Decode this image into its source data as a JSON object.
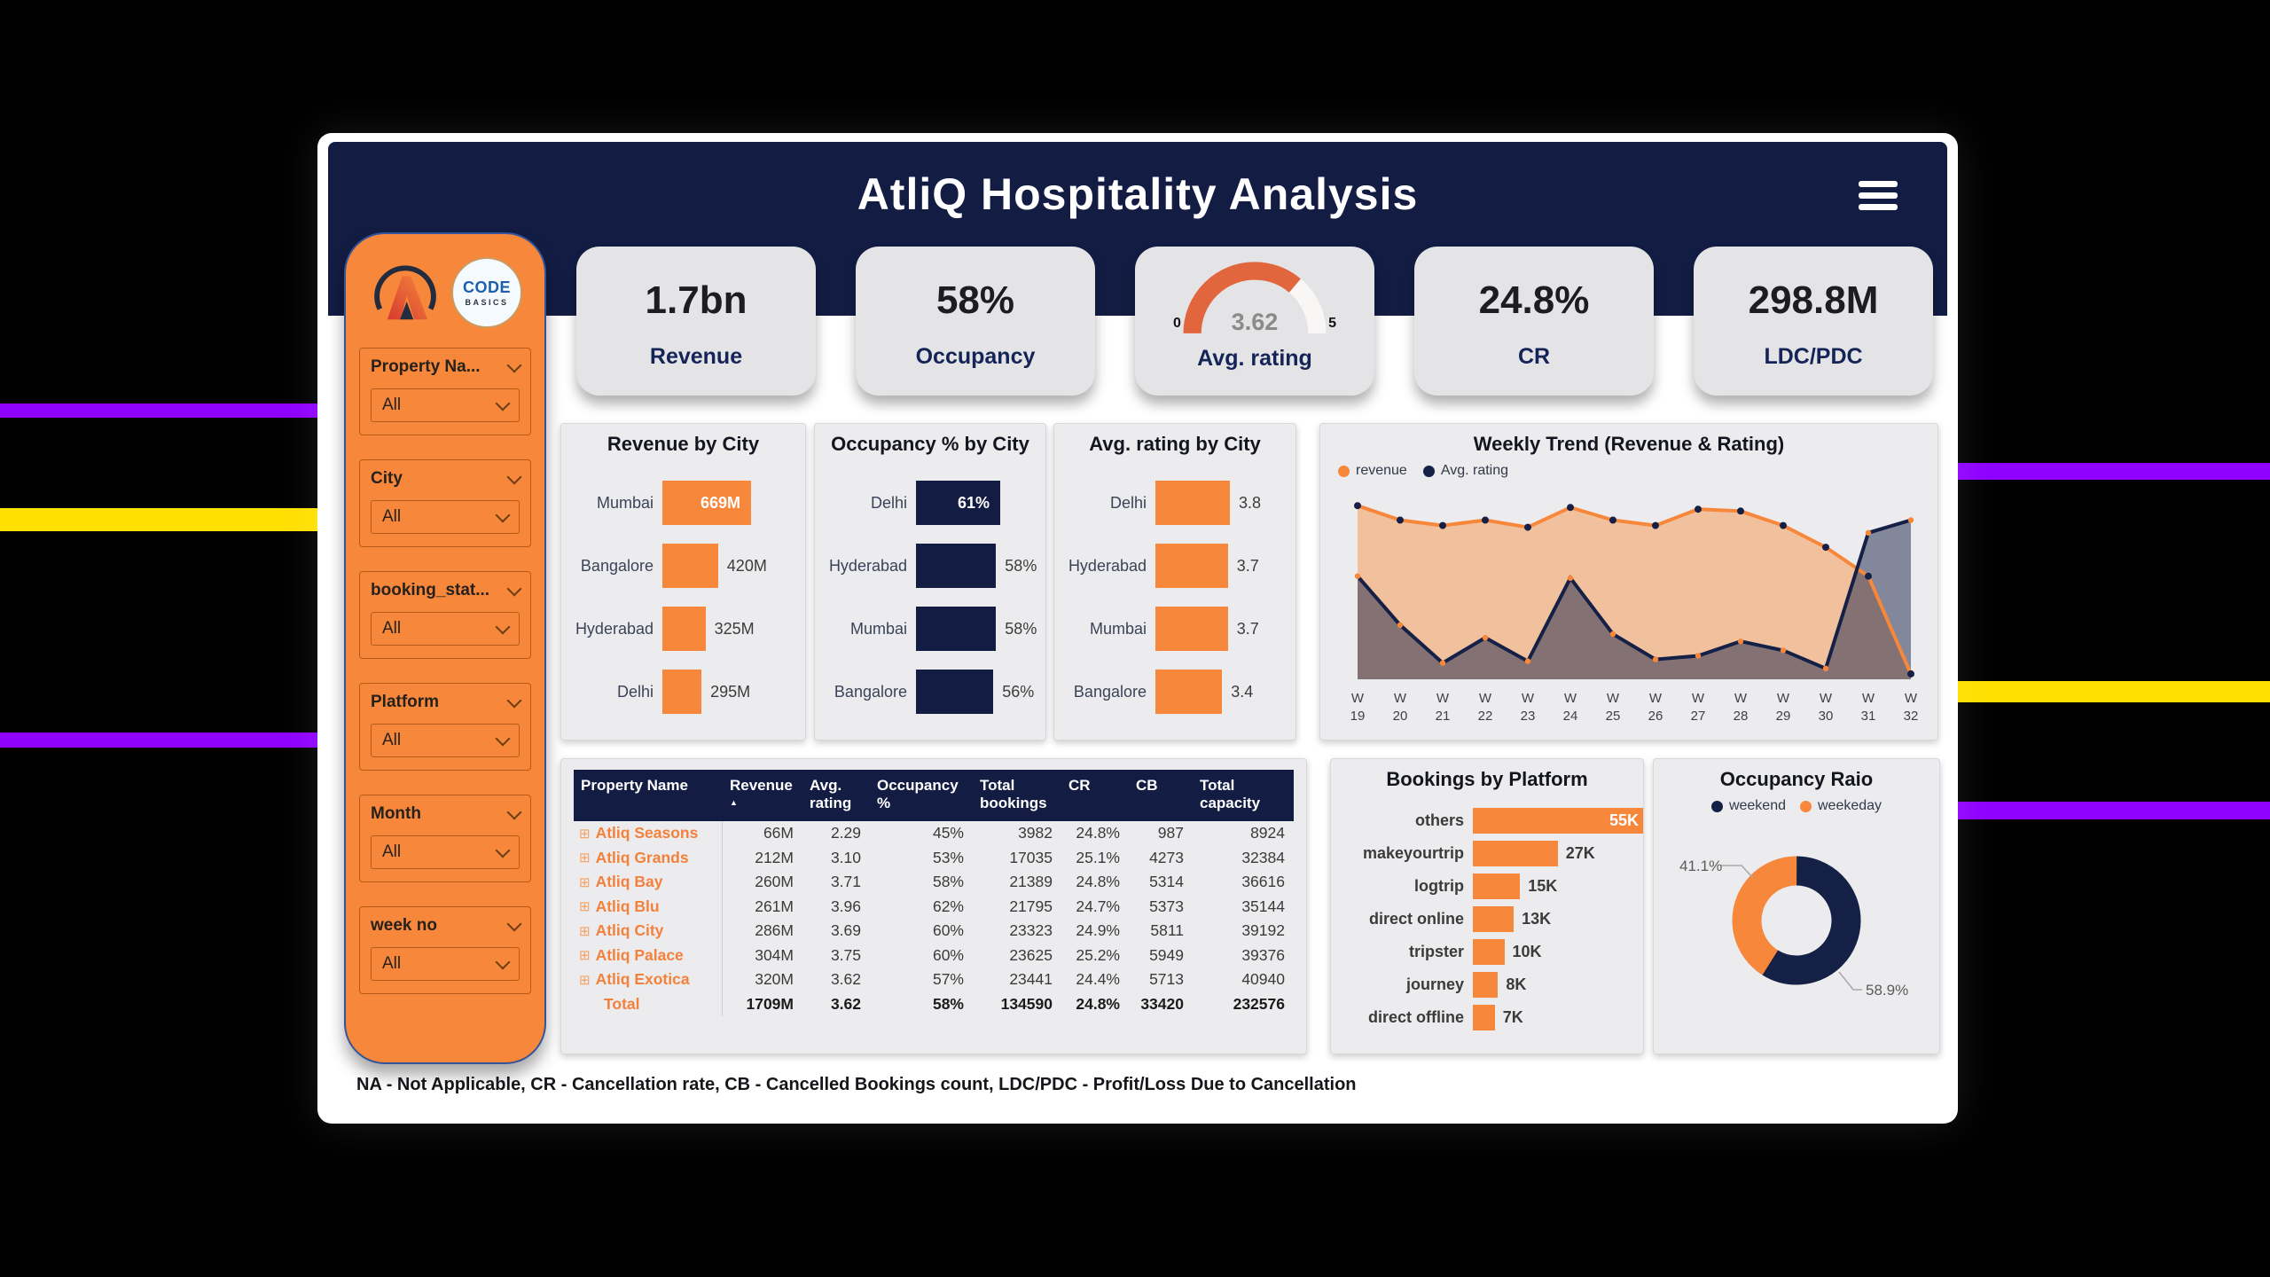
{
  "page": {
    "title": "AtliQ Hospitality Analysis",
    "footer_note": "NA - Not Applicable, CR - Cancellation rate, CB - Cancelled Bookings count, LDC/PDC - Profit/Loss Due to Cancellation"
  },
  "colors": {
    "navy": "#131D44",
    "orange": "#F6873B",
    "gauge_orange": "#E2663D",
    "purple_stripe": "#8F00FF",
    "yellow_stripe": "#FFE000",
    "card_gray": "#ECECEE",
    "kpi_gray": "#E4E4E7"
  },
  "logos": {
    "codebasics_line1": "CODE",
    "codebasics_line2": "BASICS"
  },
  "kpis": [
    {
      "id": "revenue",
      "value": "1.7bn",
      "label": "Revenue"
    },
    {
      "id": "occupancy",
      "value": "58%",
      "label": "Occupancy"
    },
    {
      "id": "avg-rating",
      "type": "gauge",
      "value": 3.62,
      "display": "3.62",
      "min": "0",
      "max": "5",
      "max_value": 5,
      "label": "Avg. rating"
    },
    {
      "id": "cr",
      "value": "24.8%",
      "label": "CR"
    },
    {
      "id": "ldc-pdc",
      "value": "298.8M",
      "label": "LDC/PDC"
    }
  ],
  "filters": [
    {
      "label": "Property Na...",
      "value": "All"
    },
    {
      "label": "City",
      "value": "All"
    },
    {
      "label": "booking_stat...",
      "value": "All"
    },
    {
      "label": "Platform",
      "value": "All"
    },
    {
      "label": "Month",
      "value": "All"
    },
    {
      "label": "week no",
      "value": "All"
    }
  ],
  "chart_data": [
    {
      "id": "revenue_by_city",
      "type": "bar",
      "orientation": "horizontal",
      "title": "Revenue by City",
      "categories": [
        "Mumbai",
        "Bangalore",
        "Hyderabad",
        "Delhi"
      ],
      "values": [
        669,
        420,
        325,
        295
      ],
      "value_labels": [
        "669M",
        "420M",
        "325M",
        "295M"
      ],
      "unit": "M",
      "bar_color": "#F6873B",
      "labels_inside": [
        0
      ]
    },
    {
      "id": "occupancy_by_city",
      "type": "bar",
      "orientation": "horizontal",
      "title": "Occupancy % by City",
      "categories": [
        "Delhi",
        "Hyderabad",
        "Mumbai",
        "Bangalore"
      ],
      "values": [
        61,
        58,
        58,
        56
      ],
      "value_labels": [
        "61%",
        "58%",
        "58%",
        "56%"
      ],
      "unit": "%",
      "bar_color": "#131D44",
      "labels_inside": [
        0
      ]
    },
    {
      "id": "rating_by_city",
      "type": "bar",
      "orientation": "horizontal",
      "title": "Avg. rating by City",
      "categories": [
        "Delhi",
        "Hyderabad",
        "Mumbai",
        "Bangalore"
      ],
      "values": [
        3.8,
        3.7,
        3.7,
        3.4
      ],
      "value_labels": [
        "3.8",
        "3.7",
        "3.7",
        "3.4"
      ],
      "unit": "rating",
      "bar_color": "#F6873B",
      "labels_inside": []
    },
    {
      "id": "weekly_trend",
      "type": "area",
      "title": "Weekly Trend (Revenue & Rating)",
      "legend_position": "top-left",
      "x_labels": [
        "W 19",
        "W 20",
        "W 21",
        "W 22",
        "W 23",
        "W 24",
        "W 25",
        "W 26",
        "W 27",
        "W 28",
        "W 29",
        "W 30",
        "W 31",
        "W 32"
      ],
      "y_axis": "unlabeled; values are normalized 0-1 heights estimated from the plot",
      "series": [
        {
          "name": "revenue",
          "color": "#F6873B",
          "marker_color": "#152047",
          "values_norm": [
            0.96,
            0.88,
            0.85,
            0.88,
            0.84,
            0.95,
            0.88,
            0.85,
            0.94,
            0.93,
            0.85,
            0.73,
            0.57,
            0.03
          ]
        },
        {
          "name": "Avg. rating",
          "color": "#152047",
          "marker_color": "#F6873B",
          "values_norm": [
            0.57,
            0.3,
            0.09,
            0.23,
            0.1,
            0.56,
            0.25,
            0.11,
            0.13,
            0.21,
            0.16,
            0.06,
            0.81,
            0.88
          ]
        }
      ]
    },
    {
      "id": "property_table",
      "type": "table",
      "sorted_by": "Revenue",
      "sort_direction": "ascending",
      "columns": [
        "Property Name",
        "Revenue",
        "Avg. rating",
        "Occupancy %",
        "Total bookings",
        "CR",
        "CB",
        "Total capacity"
      ],
      "rows": [
        [
          "Atliq Seasons",
          "66M",
          "2.29",
          "45%",
          "3982",
          "24.8%",
          "987",
          "8924"
        ],
        [
          "Atliq Grands",
          "212M",
          "3.10",
          "53%",
          "17035",
          "25.1%",
          "4273",
          "32384"
        ],
        [
          "Atliq Bay",
          "260M",
          "3.71",
          "58%",
          "21389",
          "24.8%",
          "5314",
          "36616"
        ],
        [
          "Atliq Blu",
          "261M",
          "3.96",
          "62%",
          "21795",
          "24.7%",
          "5373",
          "35144"
        ],
        [
          "Atliq City",
          "286M",
          "3.69",
          "60%",
          "23323",
          "24.9%",
          "5811",
          "39192"
        ],
        [
          "Atliq Palace",
          "304M",
          "3.75",
          "60%",
          "23625",
          "25.2%",
          "5949",
          "39376"
        ],
        [
          "Atliq Exotica",
          "320M",
          "3.62",
          "57%",
          "23441",
          "24.4%",
          "5713",
          "40940"
        ]
      ],
      "total_row": [
        "Total",
        "1709M",
        "3.62",
        "58%",
        "134590",
        "24.8%",
        "33420",
        "232576"
      ]
    },
    {
      "id": "bookings_by_platform",
      "type": "bar",
      "orientation": "horizontal",
      "title": "Bookings by Platform",
      "categories": [
        "others",
        "makeyourtrip",
        "logtrip",
        "direct online",
        "tripster",
        "journey",
        "direct offline"
      ],
      "values": [
        55,
        27,
        15,
        13,
        10,
        8,
        7
      ],
      "value_labels": [
        "55K",
        "27K",
        "15K",
        "13K",
        "10K",
        "8K",
        "7K"
      ],
      "unit": "K bookings",
      "bar_color": "#F6873B",
      "labels_inside": [
        0
      ]
    },
    {
      "id": "occupancy_ratio",
      "type": "donut",
      "title": "Occupancy Raio",
      "legend": [
        "weekend",
        "weekeday"
      ],
      "start": "top, clockwise, weekend first",
      "slices": [
        {
          "label": "weekend",
          "value_pct": 58.9,
          "display": "58.9%",
          "color": "#152047"
        },
        {
          "label": "weekeday",
          "value_pct": 41.1,
          "display": "41.1%",
          "color": "#F6873B"
        }
      ]
    }
  ]
}
